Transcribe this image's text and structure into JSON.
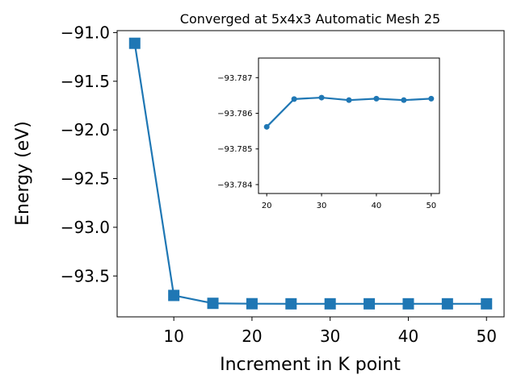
{
  "colors": {
    "series": "#1f77b4",
    "axes": "#000000",
    "background": "#ffffff"
  },
  "chart_data": [
    {
      "type": "line",
      "title": "Converged at 5x4x3 Automatic Mesh 25",
      "xlabel": "Increment in K point",
      "ylabel": "Energy (eV)",
      "xlim": [
        2.75,
        52.25
      ],
      "ylim": [
        -93.92,
        -90.98
      ],
      "x_ticks": [
        10,
        20,
        30,
        40,
        50
      ],
      "x_tick_labels": [
        "10",
        "20",
        "30",
        "40",
        "50"
      ],
      "y_ticks": [
        -91.0,
        -91.5,
        -92.0,
        -92.5,
        -93.0,
        -93.5
      ],
      "y_tick_labels": [
        "−91.0",
        "−91.5",
        "−92.0",
        "−92.5",
        "−93.0",
        "−93.5"
      ],
      "marker": "square",
      "grid": false,
      "series": [
        {
          "x": [
            5,
            10,
            15,
            20,
            25,
            30,
            35,
            40,
            45,
            50
          ],
          "y": [
            -91.11,
            -93.7,
            -93.781,
            -93.785,
            -93.786,
            -93.786,
            -93.786,
            -93.786,
            -93.786,
            -93.786
          ]
        }
      ]
    },
    {
      "type": "line",
      "inset": true,
      "xlim": [
        18.5,
        51.5
      ],
      "ylim": [
        -93.78375,
        -93.78755
      ],
      "y_inverted": true,
      "x_ticks": [
        20,
        30,
        40,
        50
      ],
      "x_tick_labels": [
        "20",
        "30",
        "40",
        "50"
      ],
      "y_ticks": [
        -93.787,
        -93.786,
        -93.785,
        -93.784
      ],
      "y_tick_labels": [
        "−93.787",
        "−93.786",
        "−93.785",
        "−93.784"
      ],
      "marker": "circle",
      "grid": false,
      "series": [
        {
          "x": [
            20,
            25,
            30,
            35,
            40,
            45,
            50
          ],
          "y": [
            -93.78562,
            -93.7864,
            -93.78644,
            -93.78637,
            -93.78641,
            -93.78637,
            -93.78641
          ]
        }
      ]
    }
  ]
}
